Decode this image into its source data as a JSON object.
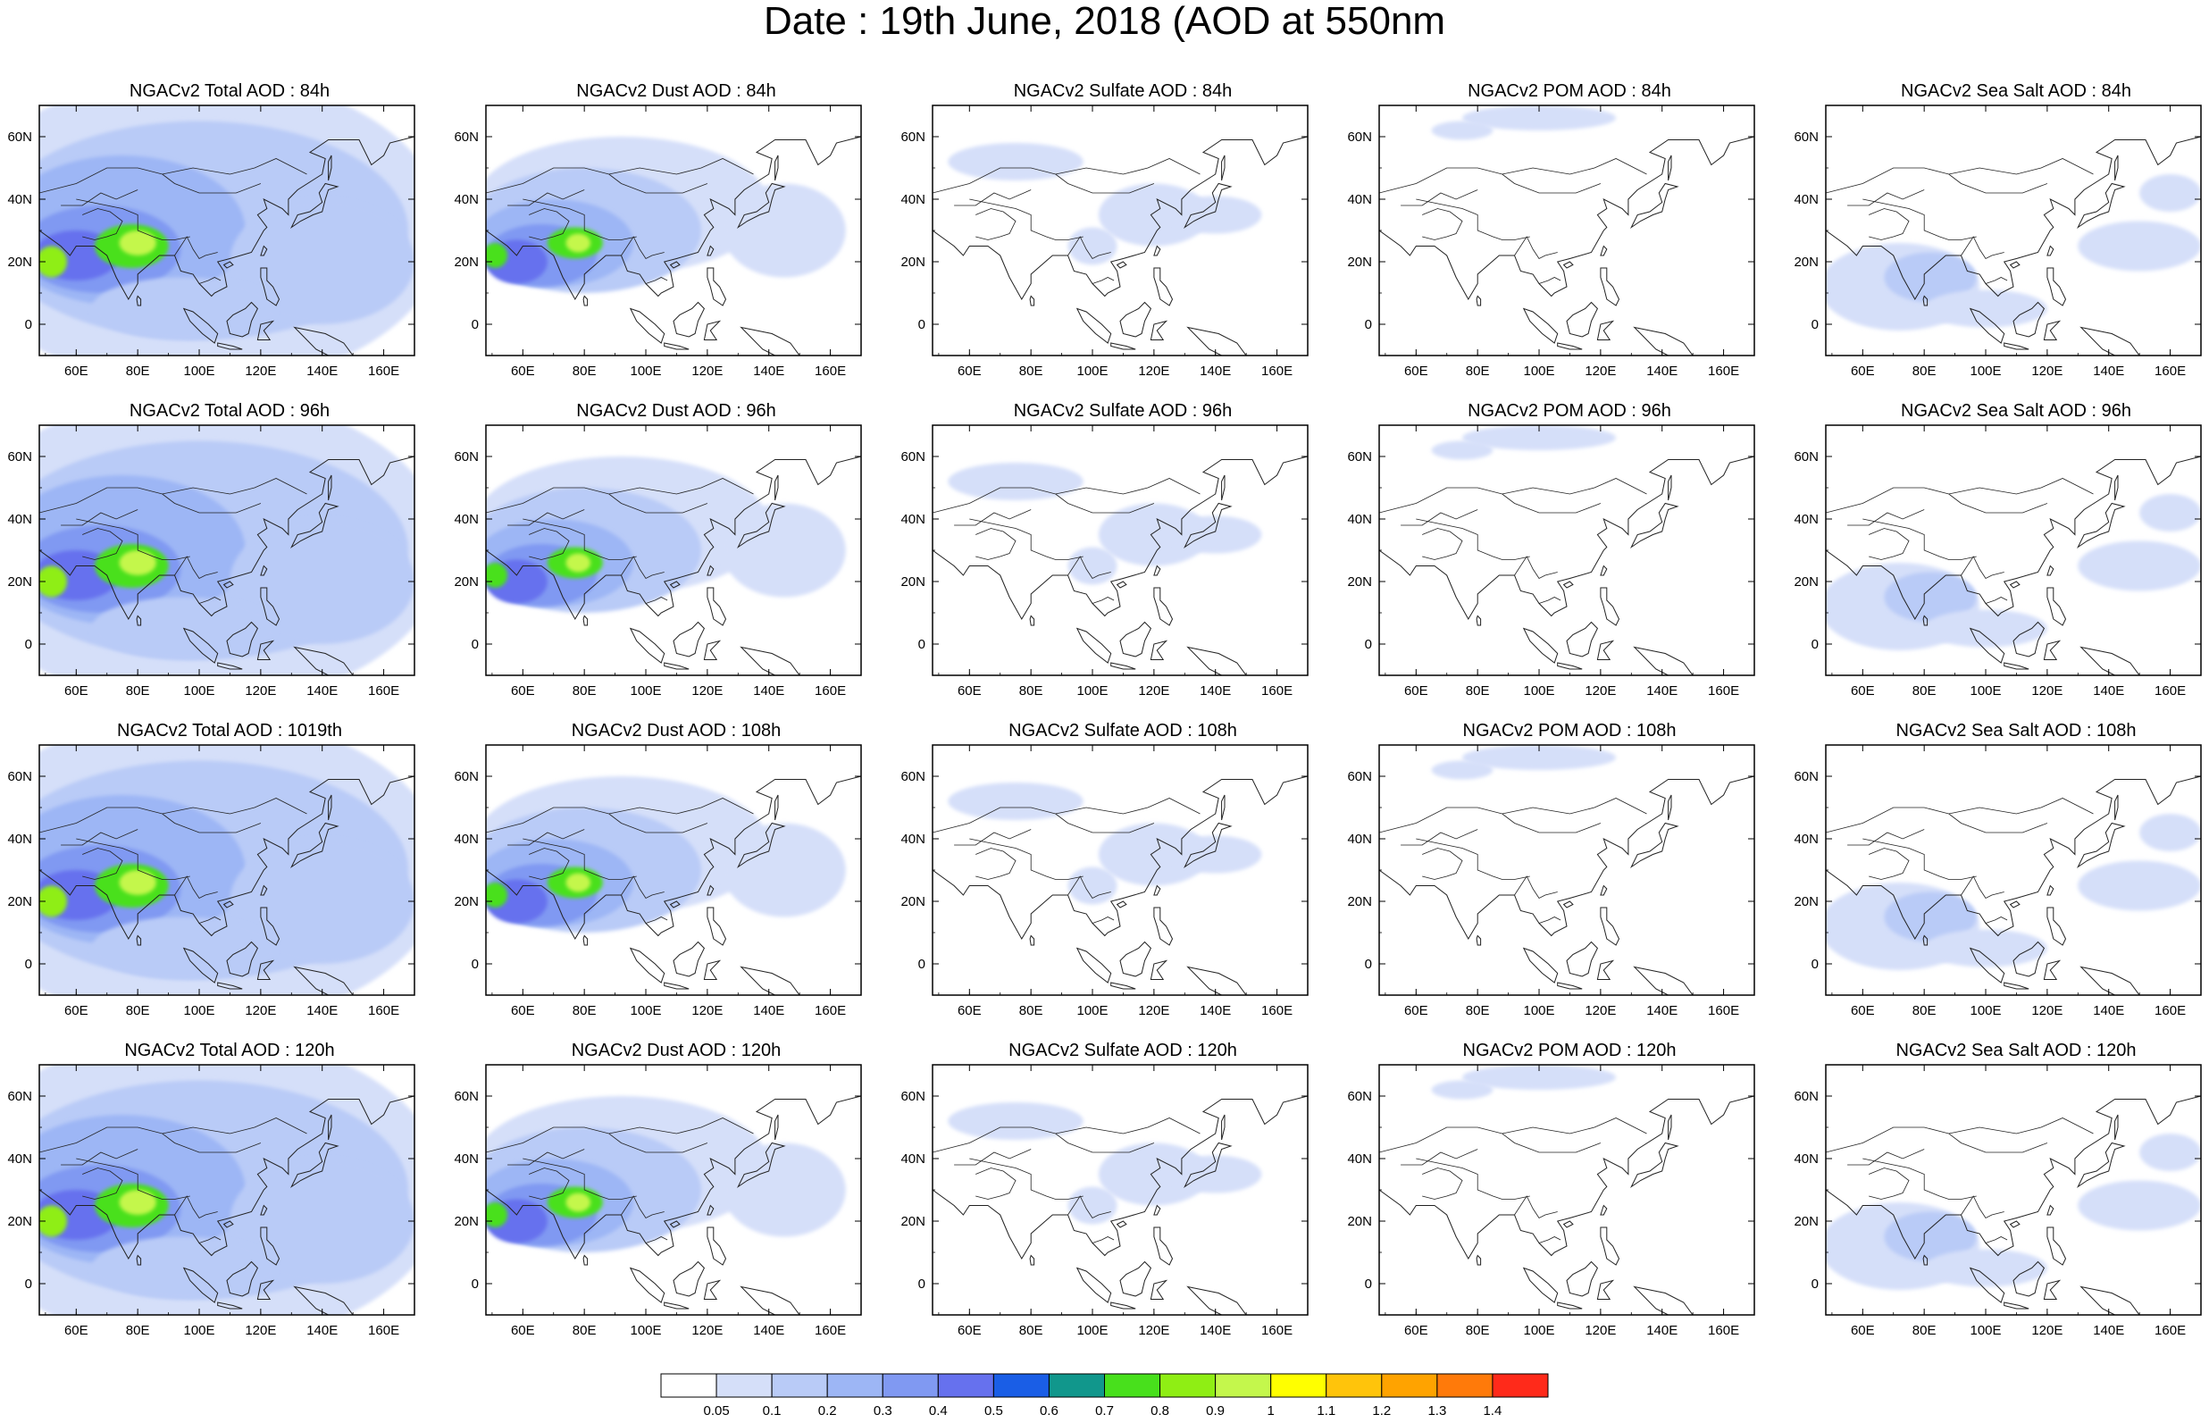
{
  "title": "Date : 19th June, 2018 (AOD at 550nm",
  "axes": {
    "lon_ticks": [
      "60E",
      "80E",
      "100E",
      "120E",
      "140E",
      "160E"
    ],
    "lat_ticks": [
      "60N",
      "40N",
      "20N",
      "0"
    ]
  },
  "colors": {
    "levels": [
      "#ffffff",
      "#d5dff9",
      "#b9cbf7",
      "#9db6f5",
      "#8099f2",
      "#6671ee",
      "#1a5ee6",
      "#11978c",
      "#48e01c",
      "#8fee14",
      "#c4f74c",
      "#ffff00",
      "#ffc40b",
      "#ffa300",
      "#ff7a0a",
      "#ff2a1a"
    ],
    "coastline": "#222222"
  },
  "colorbar": {
    "labels": [
      "0.05",
      "0.1",
      "0.2",
      "0.3",
      "0.4",
      "0.5",
      "0.6",
      "0.7",
      "0.8",
      "0.9",
      "1",
      "1.1",
      "1.2",
      "1.3",
      "1.4"
    ]
  },
  "panels": [
    {
      "title": "NGACv2 Total AOD : 84h",
      "type": "total"
    },
    {
      "title": "NGACv2 Dust AOD : 84h",
      "type": "dust"
    },
    {
      "title": "NGACv2 Sulfate AOD : 84h",
      "type": "sulfate"
    },
    {
      "title": "NGACv2 POM AOD : 84h",
      "type": "pom"
    },
    {
      "title": "NGACv2 Sea Salt AOD : 84h",
      "type": "seasalt"
    },
    {
      "title": "NGACv2 Total AOD : 96h",
      "type": "total"
    },
    {
      "title": "NGACv2 Dust AOD : 96h",
      "type": "dust"
    },
    {
      "title": "NGACv2 Sulfate AOD : 96h",
      "type": "sulfate"
    },
    {
      "title": "NGACv2 POM AOD : 96h",
      "type": "pom"
    },
    {
      "title": "NGACv2 Sea Salt AOD : 96h",
      "type": "seasalt"
    },
    {
      "title": "NGACv2 Total AOD : 1019th",
      "type": "total"
    },
    {
      "title": "NGACv2 Dust AOD : 108h",
      "type": "dust"
    },
    {
      "title": "NGACv2 Sulfate AOD : 108h",
      "type": "sulfate"
    },
    {
      "title": "NGACv2 POM AOD : 108h",
      "type": "pom"
    },
    {
      "title": "NGACv2 Sea Salt AOD : 108h",
      "type": "seasalt"
    },
    {
      "title": "NGACv2 Total AOD : 120h",
      "type": "total"
    },
    {
      "title": "NGACv2 Dust AOD : 120h",
      "type": "dust"
    },
    {
      "title": "NGACv2 Sulfate AOD : 120h",
      "type": "sulfate"
    },
    {
      "title": "NGACv2 POM AOD : 120h",
      "type": "pom"
    },
    {
      "title": "NGACv2 Sea Salt  AOD : 120h",
      "type": "seasalt"
    }
  ]
}
